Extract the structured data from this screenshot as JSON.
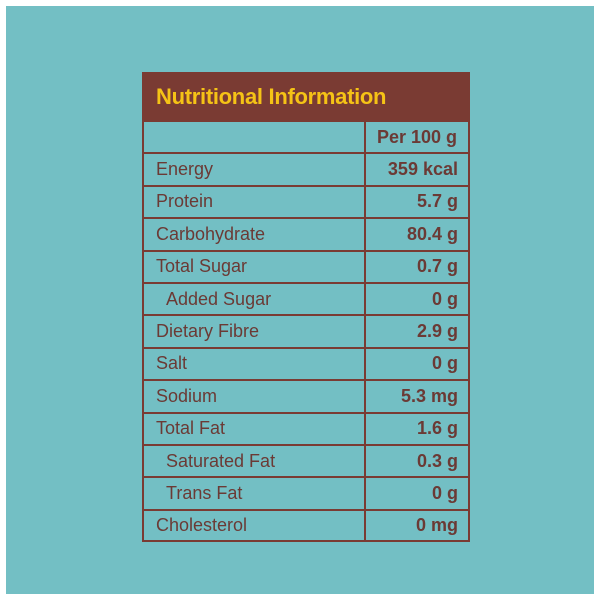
{
  "table": {
    "title": "Nutritional Information",
    "column_header": "Per 100 g",
    "rows": [
      {
        "name": "Energy",
        "value": "359 kcal"
      },
      {
        "name": "Protein",
        "value": "5.7 g"
      },
      {
        "name": "Carbohydrate",
        "value": "80.4 g"
      },
      {
        "name": "Total Sugar",
        "value": "0.7 g"
      },
      {
        "name": "Added Sugar",
        "value": "0 g"
      },
      {
        "name": "Dietary Fibre",
        "value": "2.9 g"
      },
      {
        "name": "Salt",
        "value": "0 g"
      },
      {
        "name": "Sodium",
        "value": "5.3 mg"
      },
      {
        "name": "Total Fat",
        "value": "1.6 g"
      },
      {
        "name": "Saturated Fat",
        "value": "0.3 g"
      },
      {
        "name": "Trans Fat",
        "value": "0 g"
      },
      {
        "name": "Cholesterol",
        "value": "0 mg"
      }
    ]
  },
  "colors": {
    "background": "#73bfc4",
    "header": "#7a3b33",
    "title_text": "#f5c316",
    "text": "#6b3a35"
  }
}
